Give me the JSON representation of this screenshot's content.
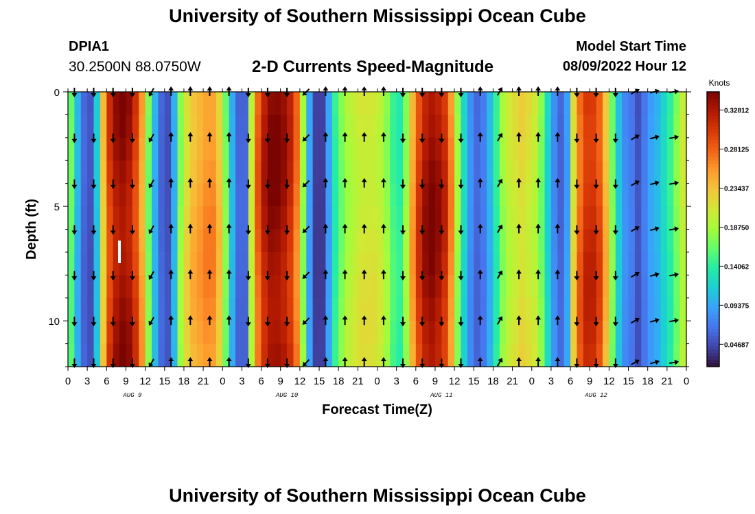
{
  "header": {
    "title": "University of Southern Mississippi Ocean Cube",
    "station_id": "DPIA1",
    "station_coords": "30.2500N  88.0750W",
    "chart_title": "2-D Currents Speed-Magnitude",
    "model_start_label": "Model Start Time",
    "model_start_value": "08/09/2022 Hour 12"
  },
  "footer": {
    "title": "University of Southern Mississippi Ocean Cube"
  },
  "chart_data": {
    "type": "heatmap",
    "title": "2-D Currents Speed-Magnitude",
    "xlabel": "Forecast Time(Z)",
    "ylabel": "Depth (ft)",
    "x_unit": "hours from 08/09/2022 00Z",
    "xlim": [
      0,
      96
    ],
    "ylim": [
      0,
      12
    ],
    "y_inverted": true,
    "x_tick_labels": [
      "0",
      "3",
      "6",
      "9",
      "12",
      "15",
      "18",
      "21",
      "0",
      "3",
      "6",
      "9",
      "12",
      "15",
      "18",
      "21",
      "0",
      "3",
      "6",
      "9",
      "12",
      "15",
      "18",
      "21",
      "0",
      "3",
      "6",
      "9",
      "12",
      "15",
      "18",
      "21",
      "0"
    ],
    "x_tick_step_hours": 3,
    "date_labels": [
      {
        "hour": 10,
        "label": "AUG 9"
      },
      {
        "hour": 34,
        "label": "AUG 10"
      },
      {
        "hour": 58,
        "label": "AUG 11"
      },
      {
        "hour": 82,
        "label": "AUG 12"
      }
    ],
    "y_ticks": [
      0,
      5,
      10
    ],
    "y_minor_step": 1,
    "colorbar": {
      "title": "Knots",
      "tick_labels": [
        "0.32812",
        "0.28125",
        "0.23437",
        "0.18750",
        "0.14062",
        "0.09375",
        "0.04687"
      ],
      "tick_values": [
        0.328125,
        0.28125,
        0.234375,
        0.1875,
        0.140625,
        0.09375,
        0.046875
      ],
      "vmin": 0.02,
      "vmax": 0.35,
      "colormap": [
        "#30123b",
        "#4145ab",
        "#4675ed",
        "#39a2fc",
        "#1bcfd4",
        "#24eca6",
        "#61fc6c",
        "#a4fc3b",
        "#d1e834",
        "#f3c63a",
        "#fe9b2d",
        "#f36315",
        "#d93806",
        "#b11901",
        "#7a0402"
      ]
    },
    "speed_profile": {
      "hours": [
        0,
        1,
        2,
        3,
        4,
        5,
        6,
        7,
        8,
        9,
        10,
        11,
        12,
        13,
        14,
        15,
        16,
        17,
        18,
        19,
        20,
        21,
        22,
        23,
        24,
        25,
        26,
        27,
        28,
        29,
        30,
        31,
        32,
        33,
        34,
        35,
        36,
        37,
        38,
        39,
        40,
        41,
        42,
        43,
        44,
        45,
        46,
        47,
        48,
        49,
        50,
        51,
        52,
        53,
        54,
        55,
        56,
        57,
        58,
        59,
        60,
        61,
        62,
        63,
        64,
        65,
        66,
        67,
        68,
        69,
        70,
        71,
        72,
        73,
        74,
        75,
        76,
        77,
        78,
        79,
        80,
        81,
        82,
        83,
        84,
        85,
        86,
        87,
        88,
        89,
        90,
        91,
        92,
        93,
        94,
        95,
        96
      ],
      "speed_knots": [
        0.16,
        0.1,
        0.06,
        0.05,
        0.11,
        0.23,
        0.3,
        0.33,
        0.34,
        0.33,
        0.3,
        0.25,
        0.17,
        0.1,
        0.06,
        0.05,
        0.1,
        0.18,
        0.22,
        0.24,
        0.25,
        0.26,
        0.26,
        0.23,
        0.17,
        0.1,
        0.06,
        0.06,
        0.2,
        0.28,
        0.32,
        0.34,
        0.34,
        0.33,
        0.31,
        0.27,
        0.18,
        0.09,
        0.04,
        0.04,
        0.09,
        0.14,
        0.17,
        0.19,
        0.2,
        0.21,
        0.21,
        0.21,
        0.2,
        0.18,
        0.15,
        0.14,
        0.18,
        0.25,
        0.3,
        0.33,
        0.34,
        0.33,
        0.31,
        0.26,
        0.18,
        0.12,
        0.08,
        0.06,
        0.07,
        0.1,
        0.14,
        0.18,
        0.2,
        0.21,
        0.22,
        0.21,
        0.2,
        0.17,
        0.12,
        0.08,
        0.06,
        0.09,
        0.22,
        0.28,
        0.31,
        0.31,
        0.29,
        0.24,
        0.17,
        0.11,
        0.08,
        0.07,
        0.05,
        0.07,
        0.09,
        0.1,
        0.12,
        0.14,
        0.17,
        0.2,
        0.24
      ]
    },
    "depth_speed_factor": 0.04,
    "vectors": {
      "hours": [
        1,
        4,
        7,
        10,
        13,
        16,
        19,
        22,
        25,
        28,
        31,
        34,
        37,
        40,
        43,
        46,
        49,
        52,
        55,
        58,
        61,
        64,
        67,
        70,
        73,
        76,
        79,
        82,
        85,
        88,
        91,
        94
      ],
      "depths_ft": [
        0,
        2,
        4,
        6,
        8,
        10,
        12
      ],
      "directions_deg": [
        180,
        180,
        180,
        180,
        210,
        0,
        0,
        0,
        0,
        180,
        180,
        180,
        225,
        0,
        0,
        0,
        0,
        180,
        180,
        180,
        180,
        0,
        30,
        0,
        0,
        0,
        180,
        180,
        180,
        60,
        75,
        80
      ]
    }
  }
}
